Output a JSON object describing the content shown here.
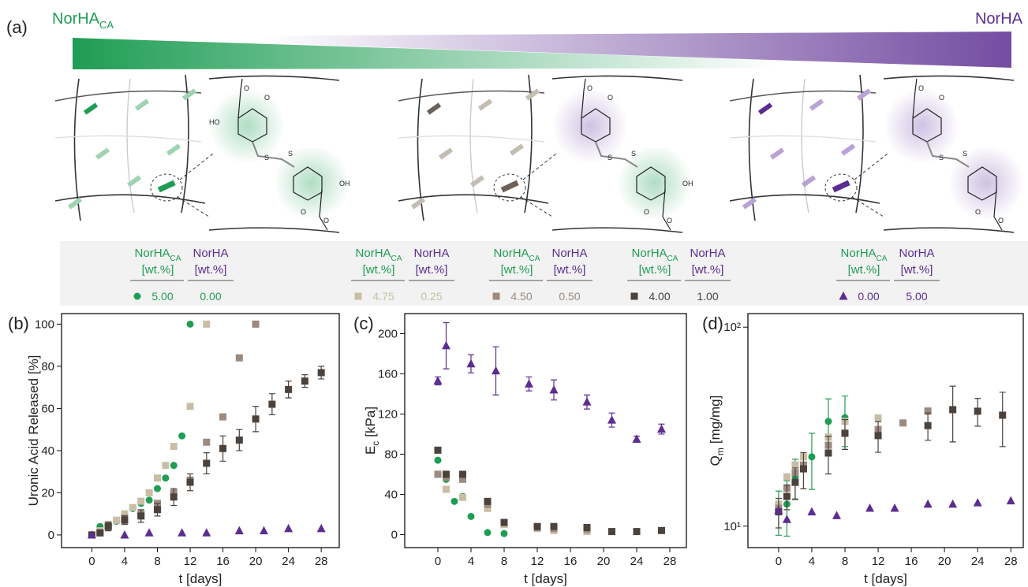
{
  "panel_a": {
    "label": "(a)",
    "left_title": [
      "NorHA",
      "CA"
    ],
    "right_title": "NorHA",
    "chem_text": {
      "o": "O",
      "s": "S",
      "ho": "HO",
      "oh": "OH"
    }
  },
  "legend": {
    "header_ca": [
      "NorHA",
      "CA"
    ],
    "header_ha": "NorHA",
    "unit": "[wt.%]",
    "groups": [
      {
        "ca": "5.00",
        "ha": "0.00",
        "color": "#1f9d55",
        "marker": "circle"
      },
      {
        "ca": "4.75",
        "ha": "0.25",
        "color": "#c9bea5",
        "marker": "square"
      },
      {
        "ca": "4.50",
        "ha": "0.50",
        "color": "#9c8a7e",
        "marker": "square"
      },
      {
        "ca": "4.00",
        "ha": "1.00",
        "color": "#4b423c",
        "marker": "square"
      },
      {
        "ca": "0.00",
        "ha": "5.00",
        "color": "#5c2d91",
        "marker": "triangle"
      }
    ]
  },
  "chart_data": [
    {
      "type": "scatter",
      "panel": "(b)",
      "xlabel": "t [days]",
      "ylabel": "Uronic Acid Released [%]",
      "xlim": [
        -3.7,
        30.2
      ],
      "ylim": [
        -6,
        105
      ],
      "xticks": [
        0,
        4,
        8,
        12,
        16,
        20,
        24,
        28
      ],
      "yticks": [
        0,
        20,
        40,
        60,
        80,
        100
      ],
      "series": [
        {
          "color": "#1f9d55",
          "marker": "circle",
          "x": [
            0,
            1,
            2,
            3,
            4,
            5,
            6,
            7,
            8,
            9,
            10,
            11,
            12
          ],
          "values": [
            0,
            4,
            5,
            6.5,
            8,
            12.5,
            15,
            16.5,
            22,
            27,
            33,
            47,
            100
          ]
        },
        {
          "color": "#c9bea5",
          "marker": "square",
          "x": [
            0,
            1,
            2,
            3,
            4,
            5,
            6,
            7,
            8,
            9,
            10,
            12,
            14
          ],
          "values": [
            0,
            2,
            5,
            7,
            10,
            13,
            16,
            20,
            27,
            33,
            42,
            61,
            100
          ]
        },
        {
          "color": "#9c8a7e",
          "marker": "square",
          "x": [
            0,
            1,
            2,
            4,
            6,
            8,
            10,
            12,
            14,
            16,
            18,
            20
          ],
          "values": [
            0,
            1,
            4,
            8,
            10,
            15,
            20,
            26,
            44,
            56,
            84,
            100
          ]
        },
        {
          "color": "#4b423c",
          "marker": "square",
          "x": [
            0,
            1,
            2,
            4,
            6,
            8,
            10,
            12,
            14,
            16,
            18,
            20,
            22,
            24,
            26,
            28
          ],
          "values": [
            0,
            1,
            4,
            7,
            9,
            12,
            18,
            25,
            34,
            41,
            45,
            55,
            62,
            69,
            73,
            77
          ],
          "errors": [
            0,
            1,
            2,
            2,
            3,
            3,
            4,
            4,
            5,
            6,
            5,
            6,
            5,
            4,
            3,
            3
          ]
        },
        {
          "color": "#5c2d91",
          "marker": "triangle",
          "x": [
            0,
            4,
            7,
            11,
            14,
            18,
            21,
            24,
            28
          ],
          "values": [
            0,
            0,
            1,
            1,
            1,
            2,
            2,
            3,
            3
          ]
        }
      ]
    },
    {
      "type": "scatter",
      "panel": "(c)",
      "xlabel": "t [days]",
      "ylabel": [
        "E",
        "c",
        "[kPa]"
      ],
      "xlim": [
        -4,
        30
      ],
      "ylim": [
        -13,
        220
      ],
      "xticks": [
        0,
        4,
        8,
        12,
        16,
        20,
        24,
        28
      ],
      "yticks": [
        0,
        40,
        80,
        120,
        160,
        200
      ],
      "series": [
        {
          "color": "#1f9d55",
          "marker": "circle",
          "x": [
            0,
            1,
            2,
            3,
            4,
            6,
            8
          ],
          "values": [
            74,
            55,
            33,
            38,
            18,
            2,
            1
          ]
        },
        {
          "color": "#c9bea5",
          "marker": "square",
          "x": [
            0,
            1,
            3,
            6,
            8,
            12,
            14,
            18
          ],
          "values": [
            60,
            45,
            37,
            26,
            10,
            6,
            4,
            3
          ]
        },
        {
          "color": "#9c8a7e",
          "marker": "square",
          "x": [
            0,
            1,
            3,
            6,
            8,
            12,
            14,
            18
          ],
          "values": [
            60,
            57,
            55,
            30,
            12,
            7,
            6,
            5
          ]
        },
        {
          "color": "#4b423c",
          "marker": "square",
          "x": [
            0,
            1,
            3,
            6,
            8,
            12,
            14,
            18,
            21,
            24,
            27
          ],
          "values": [
            84,
            60,
            60,
            33,
            12,
            8,
            8,
            7,
            3,
            3,
            4
          ]
        },
        {
          "color": "#5c2d91",
          "marker": "triangle",
          "x": [
            0,
            1,
            4,
            7,
            11,
            14,
            18,
            21,
            24,
            27
          ],
          "values": [
            153,
            188,
            170,
            163,
            150,
            144,
            132,
            114,
            95,
            105
          ],
          "errors": [
            4,
            23,
            9,
            24,
            7,
            10,
            7,
            7,
            3,
            5
          ]
        }
      ]
    },
    {
      "type": "scatter",
      "panel": "(d)",
      "xlabel": "t [days]",
      "ylabel": [
        "Q",
        "m",
        "[mg/mg]"
      ],
      "log_y": true,
      "xlim": [
        -3.7,
        29.5
      ],
      "ylim": [
        7.8,
        117
      ],
      "xticks": [
        0,
        4,
        8,
        12,
        16,
        20,
        24,
        28
      ],
      "yticks": [
        {
          "value": 10,
          "label": "10¹"
        },
        {
          "value": 100,
          "label": "10²"
        }
      ],
      "series": [
        {
          "color": "#1f9d55",
          "marker": "circle",
          "x": [
            0,
            1,
            2,
            4,
            6,
            8
          ],
          "values": [
            12,
            12.9,
            17.7,
            22.3,
            33.6,
            35.1
          ],
          "errors": [
            3,
            4,
            4,
            7,
            10,
            10
          ]
        },
        {
          "color": "#c9bea5",
          "marker": "square",
          "x": [
            0,
            1,
            2,
            3,
            6,
            8,
            12,
            18
          ],
          "values": [
            12.9,
            17.7,
            20.3,
            22.3,
            28,
            33.6,
            35,
            38
          ]
        },
        {
          "color": "#9c8a7e",
          "marker": "square",
          "x": [
            0,
            1,
            2,
            3,
            6,
            8,
            12,
            15,
            18
          ],
          "values": [
            12.3,
            15.5,
            18.6,
            20.3,
            25.5,
            29.3,
            30.6,
            33,
            37.8
          ]
        },
        {
          "color": "#4b423c",
          "marker": "square",
          "x": [
            0,
            1,
            2,
            3,
            6,
            8,
            12,
            18,
            21,
            24,
            27
          ],
          "values": [
            11.8,
            14.1,
            16.6,
            19.4,
            23.3,
            29.3,
            28.5,
            32,
            38.5,
            37.8,
            36.1
          ],
          "errors": [
            2,
            2,
            3,
            4,
            5,
            5,
            5,
            5,
            12,
            6,
            11
          ]
        },
        {
          "color": "#5c2d91",
          "marker": "triangle",
          "x": [
            0,
            1,
            4,
            7,
            11,
            14,
            18,
            21,
            24,
            28
          ],
          "values": [
            12,
            10.8,
            11.8,
            11.3,
            12.3,
            12.3,
            12.9,
            12.9,
            13.1,
            13.4
          ]
        }
      ]
    }
  ]
}
